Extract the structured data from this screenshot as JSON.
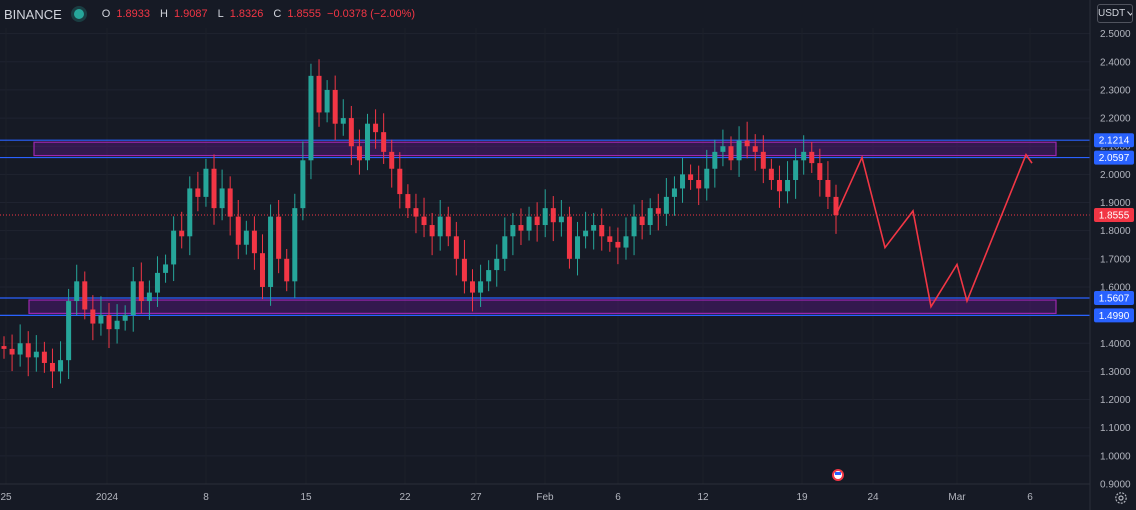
{
  "header": {
    "exchange": "BINANCE",
    "open_label": "O",
    "open": "1.8933",
    "high_label": "H",
    "high": "1.9087",
    "low_label": "L",
    "low": "1.8326",
    "close_label": "C",
    "close": "1.8555",
    "change": "−0.0378 (−2.00%)"
  },
  "unit_selector": {
    "label": "USDT"
  },
  "colors": {
    "background": "#161a25",
    "bullish": "#26a69a",
    "bearish": "#f23645",
    "zone_line": "#2962ff",
    "zone_fill": "#6a1b9a",
    "projection": "#f23645"
  },
  "chart_data": {
    "type": "candlestick",
    "x_ticks": [
      "25",
      "2024",
      "8",
      "15",
      "22",
      "27",
      "Feb",
      "6",
      "12",
      "19",
      "24",
      "Mar",
      "6"
    ],
    "y_ticks": [
      "2.5000",
      "2.4000",
      "2.3000",
      "2.2000",
      "2.1000",
      "2.0000",
      "1.9000",
      "1.8000",
      "1.7000",
      "1.6000",
      "1.5000",
      "1.4000",
      "1.3000",
      "1.2000",
      "1.1000",
      "1.0000",
      "0.9000"
    ],
    "ylim": [
      0.9,
      2.52
    ],
    "price_labels": [
      {
        "value": "2.1214",
        "color": "#2962ff"
      },
      {
        "value": "2.0597",
        "color": "#2962ff"
      },
      {
        "value": "1.8555",
        "color": "#f23645"
      },
      {
        "value": "1.5607",
        "color": "#2962ff"
      },
      {
        "value": "1.4990",
        "color": "#2962ff"
      }
    ],
    "last_price": 1.8555,
    "zones": [
      {
        "top": 2.1214,
        "bottom": 2.0597
      },
      {
        "top": 1.5607,
        "bottom": 1.499
      }
    ],
    "series": [
      {
        "close": [
          1.38,
          1.36,
          1.4,
          1.35,
          1.37,
          1.33,
          1.3,
          1.34,
          1.55,
          1.62,
          1.52,
          1.47,
          1.5,
          1.45,
          1.48,
          1.5,
          1.62,
          1.55,
          1.58,
          1.65,
          1.68,
          1.8,
          1.78,
          1.95,
          1.92,
          2.02,
          1.88,
          1.95,
          1.85,
          1.75,
          1.8,
          1.72,
          1.6,
          1.85,
          1.7,
          1.62,
          1.88,
          2.05,
          2.35,
          2.22,
          2.3,
          2.18,
          2.2,
          2.1,
          2.05,
          2.18,
          2.15,
          2.08,
          2.02,
          1.93,
          1.88,
          1.85,
          1.82,
          1.78,
          1.85,
          1.78,
          1.7,
          1.62,
          1.58,
          1.62,
          1.66,
          1.7,
          1.78,
          1.82,
          1.8,
          1.85,
          1.82,
          1.88,
          1.83,
          1.85,
          1.7,
          1.78,
          1.8,
          1.82,
          1.78,
          1.76,
          1.74,
          1.78,
          1.85,
          1.82,
          1.88,
          1.86,
          1.92,
          1.95,
          2.0,
          1.98,
          1.95,
          2.02,
          2.08,
          2.1,
          2.05,
          2.12,
          2.1,
          2.08,
          2.02,
          1.98,
          1.94,
          1.98,
          2.05,
          2.08,
          2.04,
          1.98,
          1.92,
          1.8555
        ]
      }
    ],
    "projection": [
      1.8555,
      2.06,
      1.74,
      1.87,
      1.53,
      1.68,
      1.55,
      2.07,
      2.04
    ]
  }
}
